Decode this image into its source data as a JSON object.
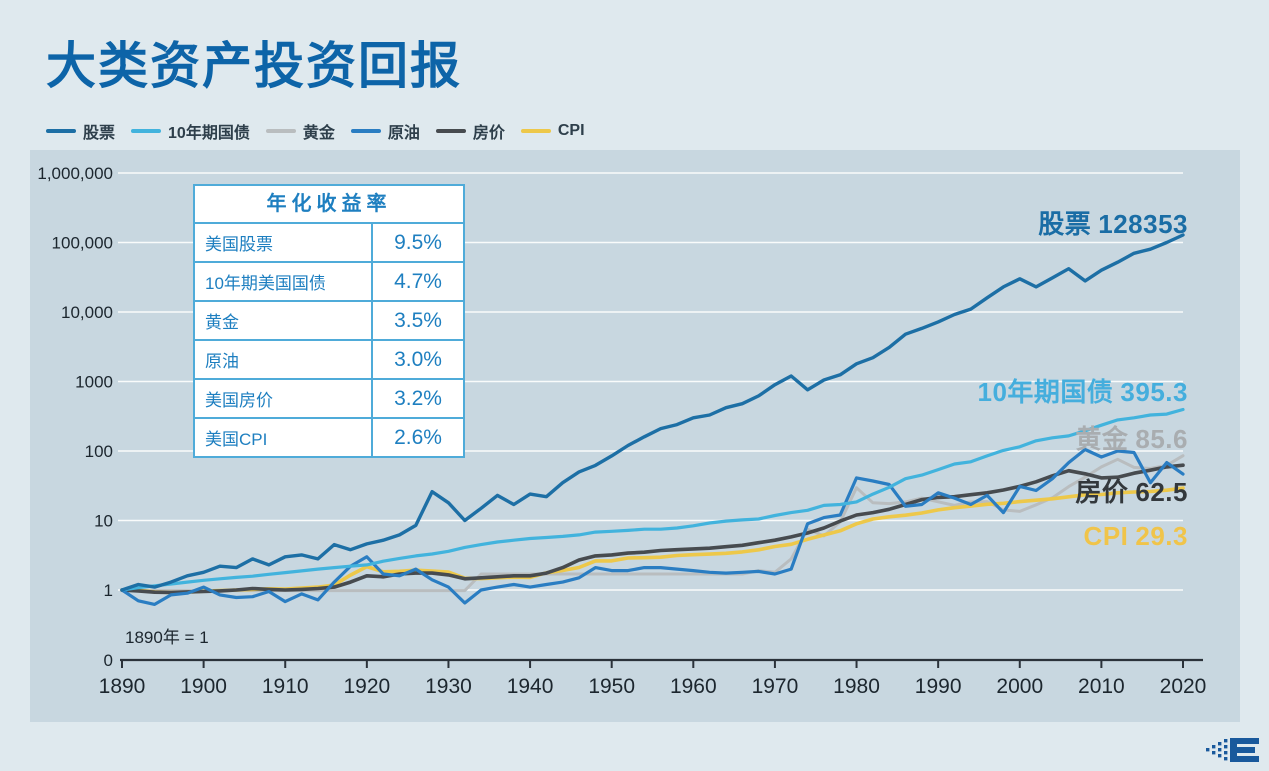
{
  "page": {
    "baseline_note": "1890年 = 1"
  },
  "annual_table": {
    "title": "年化收益率",
    "rows": [
      {
        "label": "美国股票",
        "value": "9.5%"
      },
      {
        "label": "10年期美国国债",
        "value": "4.7%"
      },
      {
        "label": "黄金",
        "value": "3.5%"
      },
      {
        "label": "原油",
        "value": "3.0%"
      },
      {
        "label": "美国房价",
        "value": "3.2%"
      },
      {
        "label": "美国CPI",
        "value": "2.6%"
      }
    ]
  },
  "chart_data": {
    "type": "line",
    "title": "大类资产投资回报",
    "y_scale": "log",
    "baseline_note": "1890年 = 1",
    "x_range": [
      1890,
      2020
    ],
    "y_ticks": [
      "1,000,000",
      "100,000",
      "10,000",
      "1000",
      "100",
      "10",
      "1"
    ],
    "zero_label": "0",
    "x_ticks": [
      "1890",
      "1900",
      "1910",
      "1920",
      "1930",
      "1940",
      "1950",
      "1960",
      "1970",
      "1980",
      "1990",
      "2000",
      "2010",
      "2020"
    ],
    "x": [
      1890,
      1892,
      1894,
      1896,
      1898,
      1900,
      1902,
      1904,
      1906,
      1908,
      1910,
      1912,
      1914,
      1916,
      1918,
      1920,
      1922,
      1924,
      1926,
      1928,
      1930,
      1932,
      1934,
      1936,
      1938,
      1940,
      1942,
      1944,
      1946,
      1948,
      1950,
      1952,
      1954,
      1956,
      1958,
      1960,
      1962,
      1964,
      1966,
      1968,
      1970,
      1972,
      1974,
      1976,
      1978,
      1980,
      1982,
      1984,
      1986,
      1988,
      1990,
      1992,
      1994,
      1996,
      1998,
      2000,
      2002,
      2004,
      2006,
      2008,
      2010,
      2012,
      2014,
      2016,
      2018,
      2020
    ],
    "series": [
      {
        "key": "stocks",
        "name": "股票",
        "color": "#1d6fa5",
        "values": [
          1.0,
          1.2,
          1.1,
          1.3,
          1.6,
          1.8,
          2.2,
          2.1,
          2.8,
          2.3,
          3.0,
          3.2,
          2.8,
          4.5,
          3.8,
          4.6,
          5.2,
          6.2,
          8.5,
          26,
          18,
          10,
          15,
          23,
          17,
          24,
          22,
          35,
          50,
          62,
          85,
          120,
          160,
          210,
          240,
          300,
          330,
          420,
          480,
          620,
          900,
          1200,
          760,
          1050,
          1250,
          1800,
          2200,
          3100,
          4800,
          5800,
          7200,
          9200,
          11000,
          16000,
          23000,
          30000,
          23000,
          31000,
          42000,
          28000,
          40000,
          52000,
          70000,
          80000,
          100000,
          128353
        ]
      },
      {
        "key": "treasury10y",
        "name": "10年期国债",
        "color": "#42b3dd",
        "values": [
          1.0,
          1.08,
          1.15,
          1.22,
          1.3,
          1.38,
          1.45,
          1.52,
          1.58,
          1.68,
          1.78,
          1.88,
          2.0,
          2.1,
          2.2,
          2.3,
          2.6,
          2.85,
          3.1,
          3.3,
          3.6,
          4.1,
          4.5,
          4.9,
          5.2,
          5.5,
          5.7,
          5.9,
          6.2,
          6.8,
          7.0,
          7.2,
          7.5,
          7.5,
          7.8,
          8.4,
          9.2,
          9.8,
          10.2,
          10.5,
          11.8,
          13,
          14,
          16.5,
          17,
          18.5,
          24,
          30,
          40,
          45,
          54,
          65,
          70,
          85,
          102,
          115,
          140,
          155,
          165,
          195,
          235,
          280,
          300,
          330,
          340,
          395.3
        ]
      },
      {
        "key": "gold",
        "name": "黄金",
        "color": "#b9bdbf",
        "values": [
          0.98,
          0.98,
          0.98,
          0.98,
          0.98,
          0.98,
          0.98,
          0.98,
          0.98,
          0.98,
          0.98,
          0.98,
          0.98,
          0.98,
          0.98,
          0.98,
          0.98,
          0.98,
          0.98,
          0.98,
          0.98,
          0.98,
          1.7,
          1.7,
          1.7,
          1.7,
          1.7,
          1.7,
          1.7,
          1.7,
          1.7,
          1.7,
          1.7,
          1.7,
          1.7,
          1.7,
          1.7,
          1.7,
          1.7,
          1.9,
          1.8,
          2.8,
          7.5,
          6.0,
          9.5,
          29.6,
          18,
          17.5,
          18.5,
          21,
          18.6,
          16.5,
          18.5,
          18.7,
          14.2,
          13.5,
          16.8,
          21.2,
          30.7,
          42,
          59,
          76,
          58,
          56,
          62,
          85.6
        ]
      },
      {
        "key": "oil",
        "name": "原油",
        "color": "#2a7dc2",
        "values": [
          1.0,
          0.7,
          0.62,
          0.85,
          0.9,
          1.1,
          0.85,
          0.78,
          0.8,
          0.95,
          0.68,
          0.88,
          0.72,
          1.3,
          2.2,
          3.0,
          1.7,
          1.6,
          2.0,
          1.4,
          1.1,
          0.65,
          1.0,
          1.1,
          1.2,
          1.1,
          1.2,
          1.3,
          1.5,
          2.1,
          1.9,
          1.9,
          2.1,
          2.1,
          2.0,
          1.9,
          1.8,
          1.75,
          1.8,
          1.85,
          1.7,
          2.0,
          9.0,
          11,
          12,
          41,
          37,
          33,
          16,
          17,
          25,
          21,
          17,
          23,
          13,
          31,
          27,
          40,
          68,
          105,
          82,
          100,
          95,
          35,
          68,
          46.5
        ]
      },
      {
        "key": "house_price",
        "name": "房价",
        "color": "#474b4f",
        "values": [
          1.0,
          0.97,
          0.93,
          0.92,
          0.94,
          0.95,
          0.97,
          1.0,
          1.05,
          1.02,
          1.0,
          1.02,
          1.05,
          1.1,
          1.3,
          1.6,
          1.55,
          1.7,
          1.75,
          1.75,
          1.65,
          1.45,
          1.5,
          1.55,
          1.6,
          1.6,
          1.75,
          2.1,
          2.7,
          3.1,
          3.2,
          3.4,
          3.5,
          3.7,
          3.8,
          3.9,
          4.0,
          4.2,
          4.4,
          4.8,
          5.2,
          5.8,
          6.6,
          7.8,
          9.8,
          12,
          13,
          14.5,
          17,
          20,
          21.5,
          22,
          23.5,
          25,
          27.5,
          31,
          36,
          44,
          52,
          47,
          41,
          42,
          48,
          53,
          59,
          62.5
        ]
      },
      {
        "key": "cpi",
        "name": "CPI",
        "color": "#edc84a",
        "values": [
          1.0,
          0.99,
          0.94,
          0.92,
          0.93,
          0.96,
          0.98,
          1.0,
          1.02,
          1.04,
          1.03,
          1.07,
          1.1,
          1.18,
          1.64,
          2.17,
          1.83,
          1.86,
          1.93,
          1.87,
          1.81,
          1.48,
          1.46,
          1.5,
          1.53,
          1.52,
          1.77,
          1.91,
          2.11,
          2.62,
          2.62,
          2.89,
          2.92,
          2.96,
          3.14,
          3.22,
          3.28,
          3.37,
          3.53,
          3.79,
          4.22,
          4.55,
          5.36,
          6.19,
          7.1,
          8.96,
          10.5,
          11.3,
          11.9,
          12.8,
          14.2,
          15.3,
          16.1,
          17.1,
          17.7,
          18.7,
          19.6,
          20.5,
          21.9,
          23.4,
          23.7,
          25.0,
          25.7,
          26.1,
          27.3,
          29.3
        ]
      }
    ],
    "annotations": [
      {
        "series": "stocks",
        "text": "股票",
        "value": "128353",
        "color": "#1a6da5"
      },
      {
        "series": "treasury10y",
        "text": "10年期国债",
        "value": "395.3",
        "color": "#45aedd"
      },
      {
        "series": "gold",
        "text": "黄金",
        "value": "85.6",
        "color": "#a9adb0"
      },
      {
        "series": "house_price",
        "text": "房价",
        "value": "62.5",
        "color": "#33383c"
      },
      {
        "series": "cpi",
        "text": "CPI",
        "value": "29.3",
        "color": "#f0c44a"
      }
    ]
  }
}
